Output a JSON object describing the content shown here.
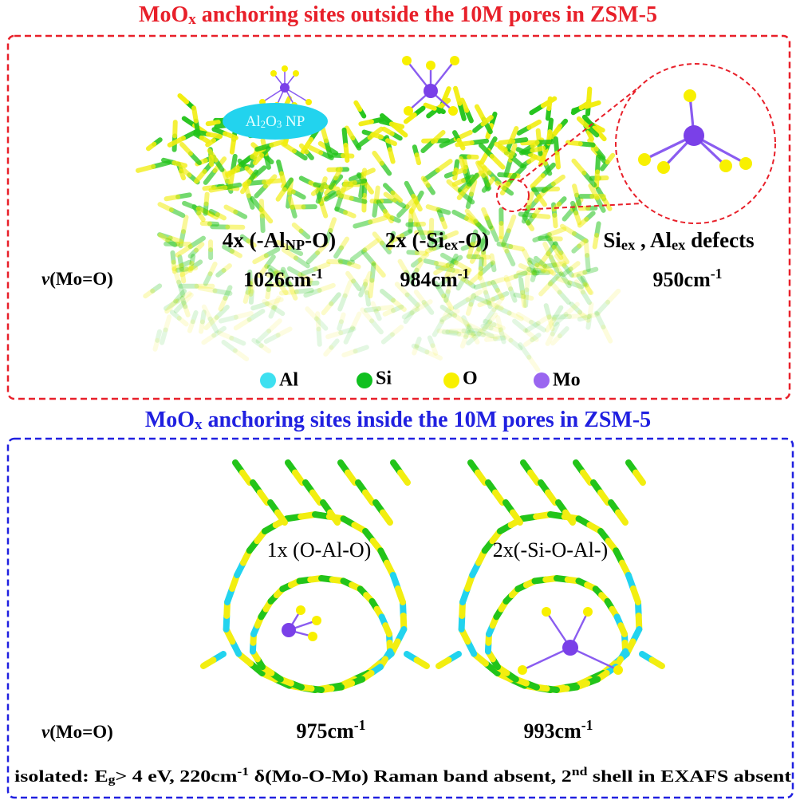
{
  "top_panel": {
    "title": [
      "MoO",
      {
        "sub": "x"
      },
      " anchoring sites outside the 10M pores in ZSM-5"
    ],
    "nanoparticle_label": [
      "Al",
      {
        "sub": "2"
      },
      "O",
      {
        "sub": "3"
      },
      " NP"
    ],
    "sites": [
      {
        "label": [
          "4x (-Al",
          {
            "sub": "NP"
          },
          "-O)"
        ],
        "frequency": [
          "1026cm",
          {
            "sup": "-1"
          }
        ]
      },
      {
        "label": [
          "2x (-Si",
          {
            "sub": "ex"
          },
          "-O)"
        ],
        "frequency": [
          "984cm",
          {
            "sup": "-1"
          }
        ]
      },
      {
        "label": [
          "Si",
          {
            "sub": "ex"
          },
          " , Al",
          {
            "sub": "ex"
          },
          " defects"
        ],
        "frequency": [
          "950cm",
          {
            "sup": "-1"
          }
        ]
      }
    ],
    "stretch_label": [
      {
        "italic": "ν"
      },
      "(Mo=O)"
    ],
    "legend": [
      "Al",
      "Si",
      "O",
      "Mo"
    ]
  },
  "bottom_panel": {
    "title": [
      "MoO",
      {
        "sub": "x"
      },
      " anchoring sites inside the 10M pores in ZSM-5"
    ],
    "sites": [
      {
        "label": [
          "1x (O-Al-O)"
        ],
        "frequency": [
          "975cm",
          {
            "sup": "-1"
          }
        ]
      },
      {
        "label": [
          "2x(-Si-O-Al-)"
        ],
        "frequency": [
          "993cm",
          {
            "sup": "-1"
          }
        ]
      }
    ],
    "stretch_label": [
      {
        "italic": "ν"
      },
      "(Mo=O)"
    ],
    "footer": [
      "isolated: E",
      {
        "sub": "g"
      },
      "> 4 eV, 220cm",
      {
        "sup": "-1"
      },
      " δ(Mo-O-Mo) Raman band absent, 2",
      {
        "sup": "nd"
      },
      " shell in EXAFS absent"
    ]
  }
}
